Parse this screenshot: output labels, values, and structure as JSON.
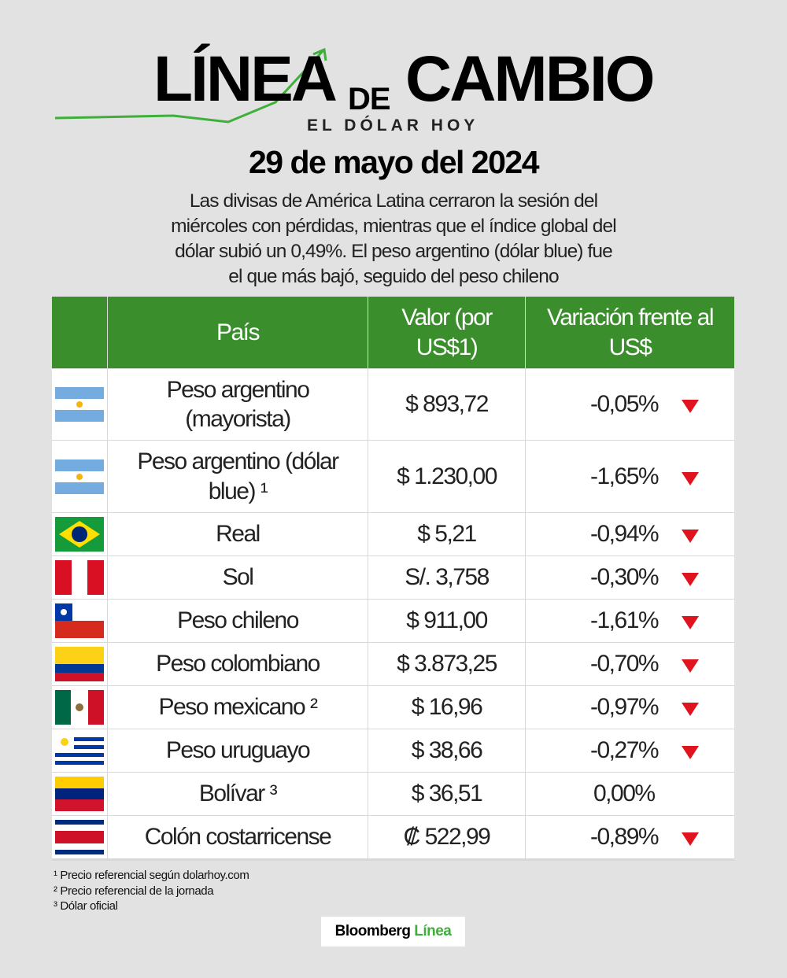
{
  "header": {
    "logo_left": "LÍNEA",
    "logo_mid": "DE",
    "logo_right": "CAMBIO",
    "logo_sub": "EL DÓLAR HOY",
    "date": "29 de mayo del 2024",
    "intro": [
      "Las divisas de América Latina cerraron la sesión del",
      "miércoles con pérdidas, mientras que el índice global del",
      "dólar subió un 0,49%. El peso argentino (dólar blue) fue",
      "el que más bajó, seguido del peso chileno"
    ]
  },
  "table": {
    "headers": [
      "País",
      "Valor (por US$1)",
      "Variación frente al US$"
    ],
    "rows": [
      [
        "Peso argentino (mayorista)",
        "$ 893,72",
        "-0,05%"
      ],
      [
        "Peso argentino (dólar blue) ¹",
        "$ 1.230,00",
        "-1,65%"
      ],
      [
        "Real",
        "$ 5,21",
        "-0,94%"
      ],
      [
        "Sol",
        "S/. 3,758",
        "-0,30%"
      ],
      [
        "Peso chileno",
        "$ 911,00",
        "-1,61%"
      ],
      [
        "Peso colombiano",
        "$ 3.873,25",
        "-0,70%"
      ],
      [
        "Peso mexicano ²",
        "$ 16,96",
        "-0,97%"
      ],
      [
        "Peso uruguayo",
        "$ 38,66",
        "-0,27%"
      ],
      [
        "Bolívar ³",
        "$ 36,51",
        "0,00%"
      ],
      [
        "Colón costarricense",
        "₡ 522,99",
        "-0,89%"
      ]
    ]
  },
  "footnotes": [
    "¹ Precio referencial según dolarhoy.com",
    "² Precio referencial de la jornada",
    "³ Dólar oficial"
  ],
  "brand": {
    "name": "Bloomberg",
    "accent": "Línea"
  }
}
